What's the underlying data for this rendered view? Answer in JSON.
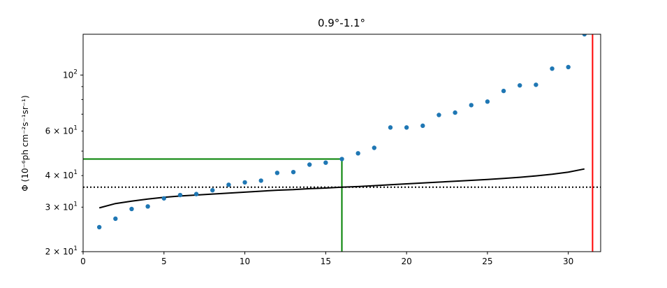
{
  "chart_data": {
    "type": "scatter",
    "title": "0.9°-1.1°",
    "xlabel": "",
    "ylabel": "Φ (10⁻⁶ph cm⁻²s⁻¹sr⁻¹)",
    "xlim": [
      0,
      32
    ],
    "ylim": [
      20,
      145
    ],
    "yscale": "log",
    "grid": false,
    "x_ticks": [
      0,
      5,
      10,
      15,
      20,
      25,
      30
    ],
    "y_major_ticks": [
      {
        "value": 100,
        "label": "10",
        "exp": "2"
      }
    ],
    "y_minor_ticks": [
      {
        "value": 20,
        "label": "2 × 10",
        "exp": "1"
      },
      {
        "value": 30,
        "label": "3 × 10",
        "exp": "1"
      },
      {
        "value": 40,
        "label": "4 × 10",
        "exp": "1"
      },
      {
        "value": 60,
        "label": "6 × 10",
        "exp": "1"
      }
    ],
    "y_unlabeled_minor_ticks": [
      50,
      70,
      80,
      90
    ],
    "points": {
      "color": "#1f77b4",
      "x": [
        1,
        2,
        3,
        4,
        5,
        6,
        7,
        8,
        9,
        10,
        11,
        12,
        13,
        14,
        15,
        16,
        17,
        18,
        19,
        20,
        21,
        22,
        23,
        24,
        25,
        26,
        27,
        28,
        29,
        30,
        31
      ],
      "y": [
        25.0,
        27.0,
        29.5,
        30.2,
        32.5,
        33.5,
        33.8,
        35.0,
        36.8,
        37.6,
        38.2,
        41.0,
        41.3,
        44.2,
        45.0,
        46.5,
        49.0,
        51.5,
        62.0,
        62.0,
        63.0,
        69.5,
        71.0,
        76.0,
        78.5,
        86.5,
        91.0,
        91.5,
        106.0,
        107.5,
        145.0
      ]
    },
    "threshold_curve": {
      "color": "#000000",
      "x": [
        1,
        2,
        3,
        4,
        5,
        6,
        7,
        8,
        9,
        10,
        11,
        12,
        13,
        14,
        15,
        16,
        17,
        18,
        19,
        20,
        21,
        22,
        23,
        24,
        25,
        26,
        27,
        28,
        29,
        30,
        31
      ],
      "y": [
        29.8,
        31.0,
        31.7,
        32.3,
        32.8,
        33.2,
        33.5,
        33.8,
        34.1,
        34.4,
        34.7,
        35.0,
        35.2,
        35.5,
        35.7,
        36.0,
        36.2,
        36.5,
        36.8,
        37.1,
        37.4,
        37.7,
        38.0,
        38.3,
        38.6,
        39.0,
        39.4,
        39.9,
        40.5,
        41.3,
        42.5
      ]
    },
    "dotted_hline": {
      "y": 36.0,
      "color": "#000000"
    },
    "green_lines": {
      "x": 16,
      "y": 46.5,
      "color": "#008000"
    },
    "red_vline": {
      "x": 31.5,
      "color": "#ff0000"
    }
  }
}
